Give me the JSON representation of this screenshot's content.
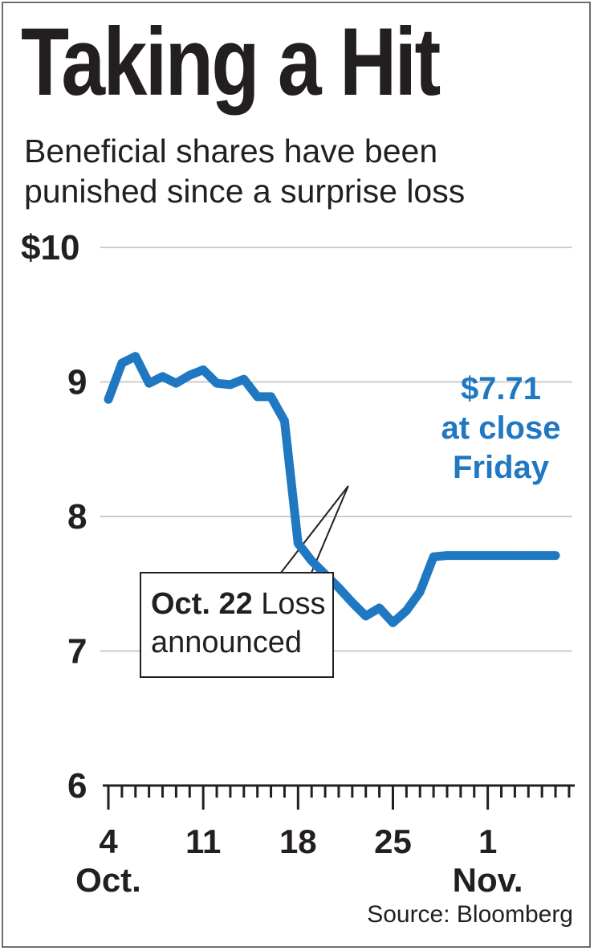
{
  "title": "Taking a Hit",
  "subtitle_lines": [
    "Beneficial shares have been",
    "punished since a surprise loss"
  ],
  "source": "Source: Bloomberg",
  "colors": {
    "line": "#1f78c1",
    "grid": "#cccccc",
    "text": "#231f20"
  },
  "chart_data": {
    "type": "line",
    "title": "Taking a Hit",
    "subtitle": "Beneficial shares have been punished since a surprise loss",
    "ylim": [
      6,
      10
    ],
    "xlim": [
      "Oct. 4",
      "Nov. 6"
    ],
    "y_ticks": [
      {
        "value": 10,
        "label": "$10"
      },
      {
        "value": 9,
        "label": "9"
      },
      {
        "value": 8,
        "label": "8"
      },
      {
        "value": 7,
        "label": "7"
      },
      {
        "value": 6,
        "label": "6"
      }
    ],
    "x_ticks": [
      {
        "day": 0,
        "label": "4",
        "sublabel": "Oct."
      },
      {
        "day": 7,
        "label": "11",
        "sublabel": ""
      },
      {
        "day": 14,
        "label": "18",
        "sublabel": ""
      },
      {
        "day": 21,
        "label": "25",
        "sublabel": ""
      },
      {
        "day": 28,
        "label": "1",
        "sublabel": "Nov."
      }
    ],
    "series": [
      {
        "x": [
          "Oct. 4",
          "Oct. 5",
          "Oct. 6",
          "Oct. 7",
          "Oct. 8",
          "Oct. 9",
          "Oct. 10",
          "Oct. 11",
          "Oct. 12",
          "Oct. 13",
          "Oct. 14",
          "Oct. 15",
          "Oct. 16",
          "Oct. 17",
          "Oct. 18",
          "Oct. 19",
          "Oct. 20",
          "Oct. 21",
          "Oct. 22",
          "Oct. 23",
          "Oct. 24",
          "Oct. 25",
          "Oct. 26",
          "Oct. 27",
          "Oct. 28",
          "Oct. 29",
          "Oct. 30",
          "Oct. 31",
          "Nov. 1",
          "Nov. 2",
          "Nov. 3",
          "Nov. 4",
          "Nov. 5",
          "Nov. 6"
        ],
        "days": [
          0,
          1,
          2,
          3,
          4,
          5,
          6,
          7,
          8,
          9,
          10,
          11,
          12,
          13,
          14,
          15,
          16,
          17,
          18,
          19,
          20,
          21,
          22,
          23,
          24,
          25,
          26,
          27,
          28,
          29,
          30,
          31,
          32,
          33
        ],
        "values": [
          8.87,
          9.14,
          9.19,
          8.99,
          9.04,
          8.99,
          9.05,
          9.09,
          8.99,
          8.98,
          9.02,
          8.89,
          8.89,
          8.71,
          7.8,
          7.67,
          7.57,
          7.47,
          7.36,
          7.26,
          7.32,
          7.21,
          7.3,
          7.44,
          7.7,
          7.71,
          7.71,
          7.71,
          7.71,
          7.71,
          7.71,
          7.71,
          7.71,
          7.71
        ]
      }
    ],
    "end_label_lines": [
      "$7.71",
      "at close",
      "Friday"
    ],
    "annotation": {
      "bold": "Oct. 22",
      "text_1": " Loss",
      "text_2": "announced",
      "day": 18
    }
  }
}
